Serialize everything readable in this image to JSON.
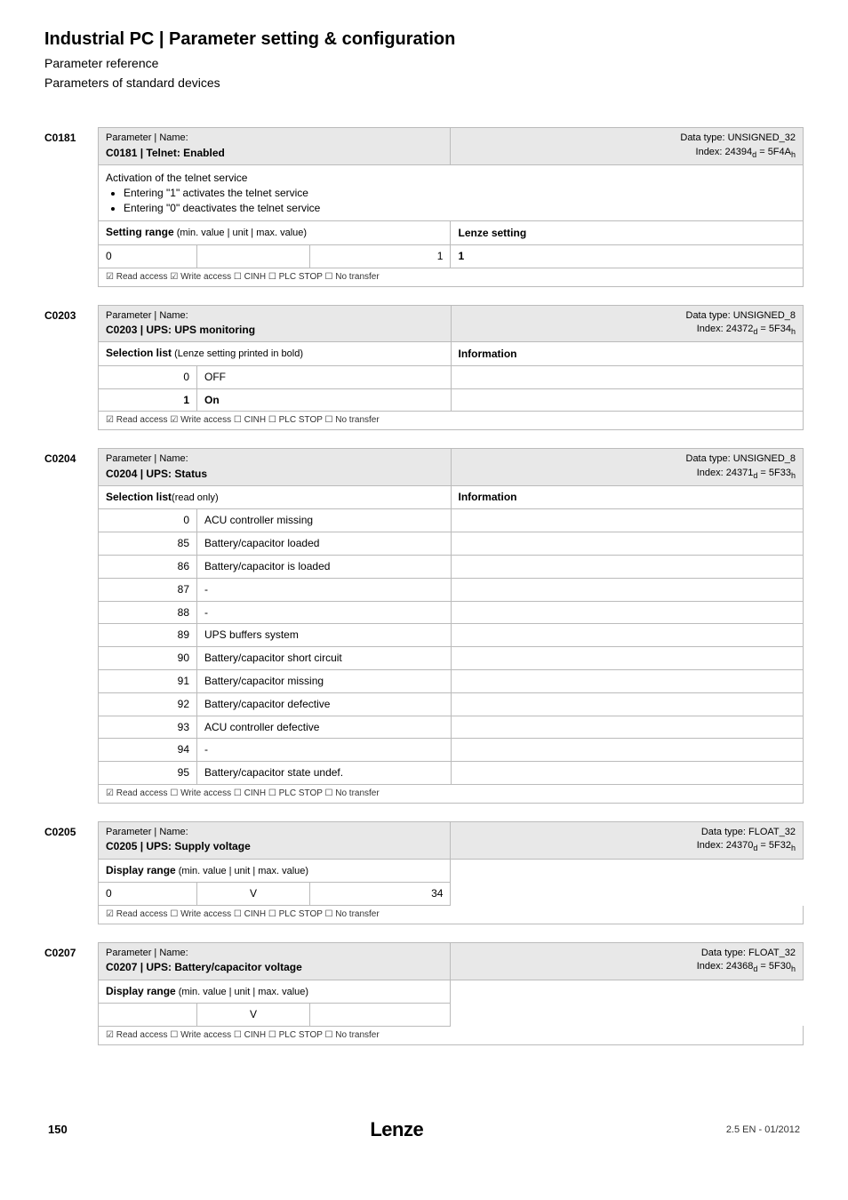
{
  "header": {
    "title": "Industrial PC | Parameter setting & configuration",
    "subtitle1": "Parameter reference",
    "subtitle2": "Parameters of standard devices"
  },
  "colors": {
    "group_bg": "#e8e8e8",
    "border": "#bbbbbb",
    "text": "#000000",
    "access_text": "#333333"
  },
  "params": [
    {
      "id": "C0181",
      "header": {
        "label": "Parameter | Name:",
        "name": "C0181 | Telnet: Enabled",
        "dtype": "Data type: UNSIGNED_32",
        "index": "Index: 24394",
        "index_sub": "d",
        "index_hex": " = 5F4A",
        "index_hex_sub": "h"
      },
      "desc": {
        "text": "Activation of the telnet service",
        "bullets": [
          "Entering \"1\" activates the telnet service",
          "Entering \"0\" deactivates the telnet service"
        ]
      },
      "setting_range": {
        "label": "Setting range",
        "sub": " (min. value | unit | max. value)",
        "right_label": "Lenze setting",
        "row": {
          "min": "0",
          "unit": "",
          "max": "1",
          "setting": "1"
        }
      },
      "access": "☑ Read access   ☑ Write access   ☐ CINH   ☐ PLC STOP   ☐ No transfer"
    },
    {
      "id": "C0203",
      "header": {
        "label": "Parameter | Name:",
        "name": "C0203 | UPS: UPS monitoring",
        "dtype": "Data type: UNSIGNED_8",
        "index": "Index: 24372",
        "index_sub": "d",
        "index_hex": " = 5F34",
        "index_hex_sub": "h"
      },
      "selection": {
        "label": "Selection list",
        "sub": " (Lenze setting printed in bold)",
        "right_label": "Information",
        "rows": [
          {
            "num": "0",
            "text": "OFF",
            "bold": false
          },
          {
            "num": "1",
            "text": "On",
            "bold": true
          }
        ]
      },
      "access": "☑ Read access   ☑ Write access   ☐ CINH   ☐ PLC STOP   ☐ No transfer"
    },
    {
      "id": "C0204",
      "header": {
        "label": "Parameter | Name:",
        "name": "C0204 | UPS: Status",
        "dtype": "Data type: UNSIGNED_8",
        "index": "Index: 24371",
        "index_sub": "d",
        "index_hex": " = 5F33",
        "index_hex_sub": "h"
      },
      "selection": {
        "label": "Selection list",
        "sub": "(read only)",
        "right_label": "Information",
        "rows": [
          {
            "num": "0",
            "text": "ACU controller missing"
          },
          {
            "num": "85",
            "text": "Battery/capacitor loaded"
          },
          {
            "num": "86",
            "text": "Battery/capacitor is loaded"
          },
          {
            "num": "87",
            "text": "-"
          },
          {
            "num": "88",
            "text": "-"
          },
          {
            "num": "89",
            "text": "UPS buffers system"
          },
          {
            "num": "90",
            "text": "Battery/capacitor short circuit"
          },
          {
            "num": "91",
            "text": "Battery/capacitor missing"
          },
          {
            "num": "92",
            "text": "Battery/capacitor defective"
          },
          {
            "num": "93",
            "text": "ACU controller defective"
          },
          {
            "num": "94",
            "text": "-"
          },
          {
            "num": "95",
            "text": "Battery/capacitor state undef."
          }
        ]
      },
      "access": "☑ Read access   ☐ Write access   ☐ CINH   ☐ PLC STOP   ☐ No transfer"
    },
    {
      "id": "C0205",
      "header": {
        "label": "Parameter | Name:",
        "name": "C0205 | UPS: Supply voltage",
        "dtype": "Data type: FLOAT_32",
        "index": "Index: 24370",
        "index_sub": "d",
        "index_hex": " = 5F32",
        "index_hex_sub": "h"
      },
      "display_range": {
        "label": "Display range",
        "sub": " (min. value | unit | max. value)",
        "row": {
          "min": "0",
          "unit": "V",
          "max": "34"
        }
      },
      "access": "☑ Read access   ☐ Write access   ☐ CINH   ☐ PLC STOP   ☐ No transfer"
    },
    {
      "id": "C0207",
      "header": {
        "label": "Parameter | Name:",
        "name": "C0207 | UPS: Battery/capacitor voltage",
        "dtype": "Data type: FLOAT_32",
        "index": "Index: 24368",
        "index_sub": "d",
        "index_hex": " = 5F30",
        "index_hex_sub": "h"
      },
      "display_range": {
        "label": "Display range",
        "sub": " (min. value | unit | max. value)",
        "row": {
          "min": "",
          "unit": "V",
          "max": ""
        }
      },
      "access": "☑ Read access   ☐ Write access   ☐ CINH   ☐ PLC STOP   ☐ No transfer"
    }
  ],
  "footer": {
    "page": "150",
    "logo": "Lenze",
    "right": "2.5 EN - 01/2012"
  }
}
